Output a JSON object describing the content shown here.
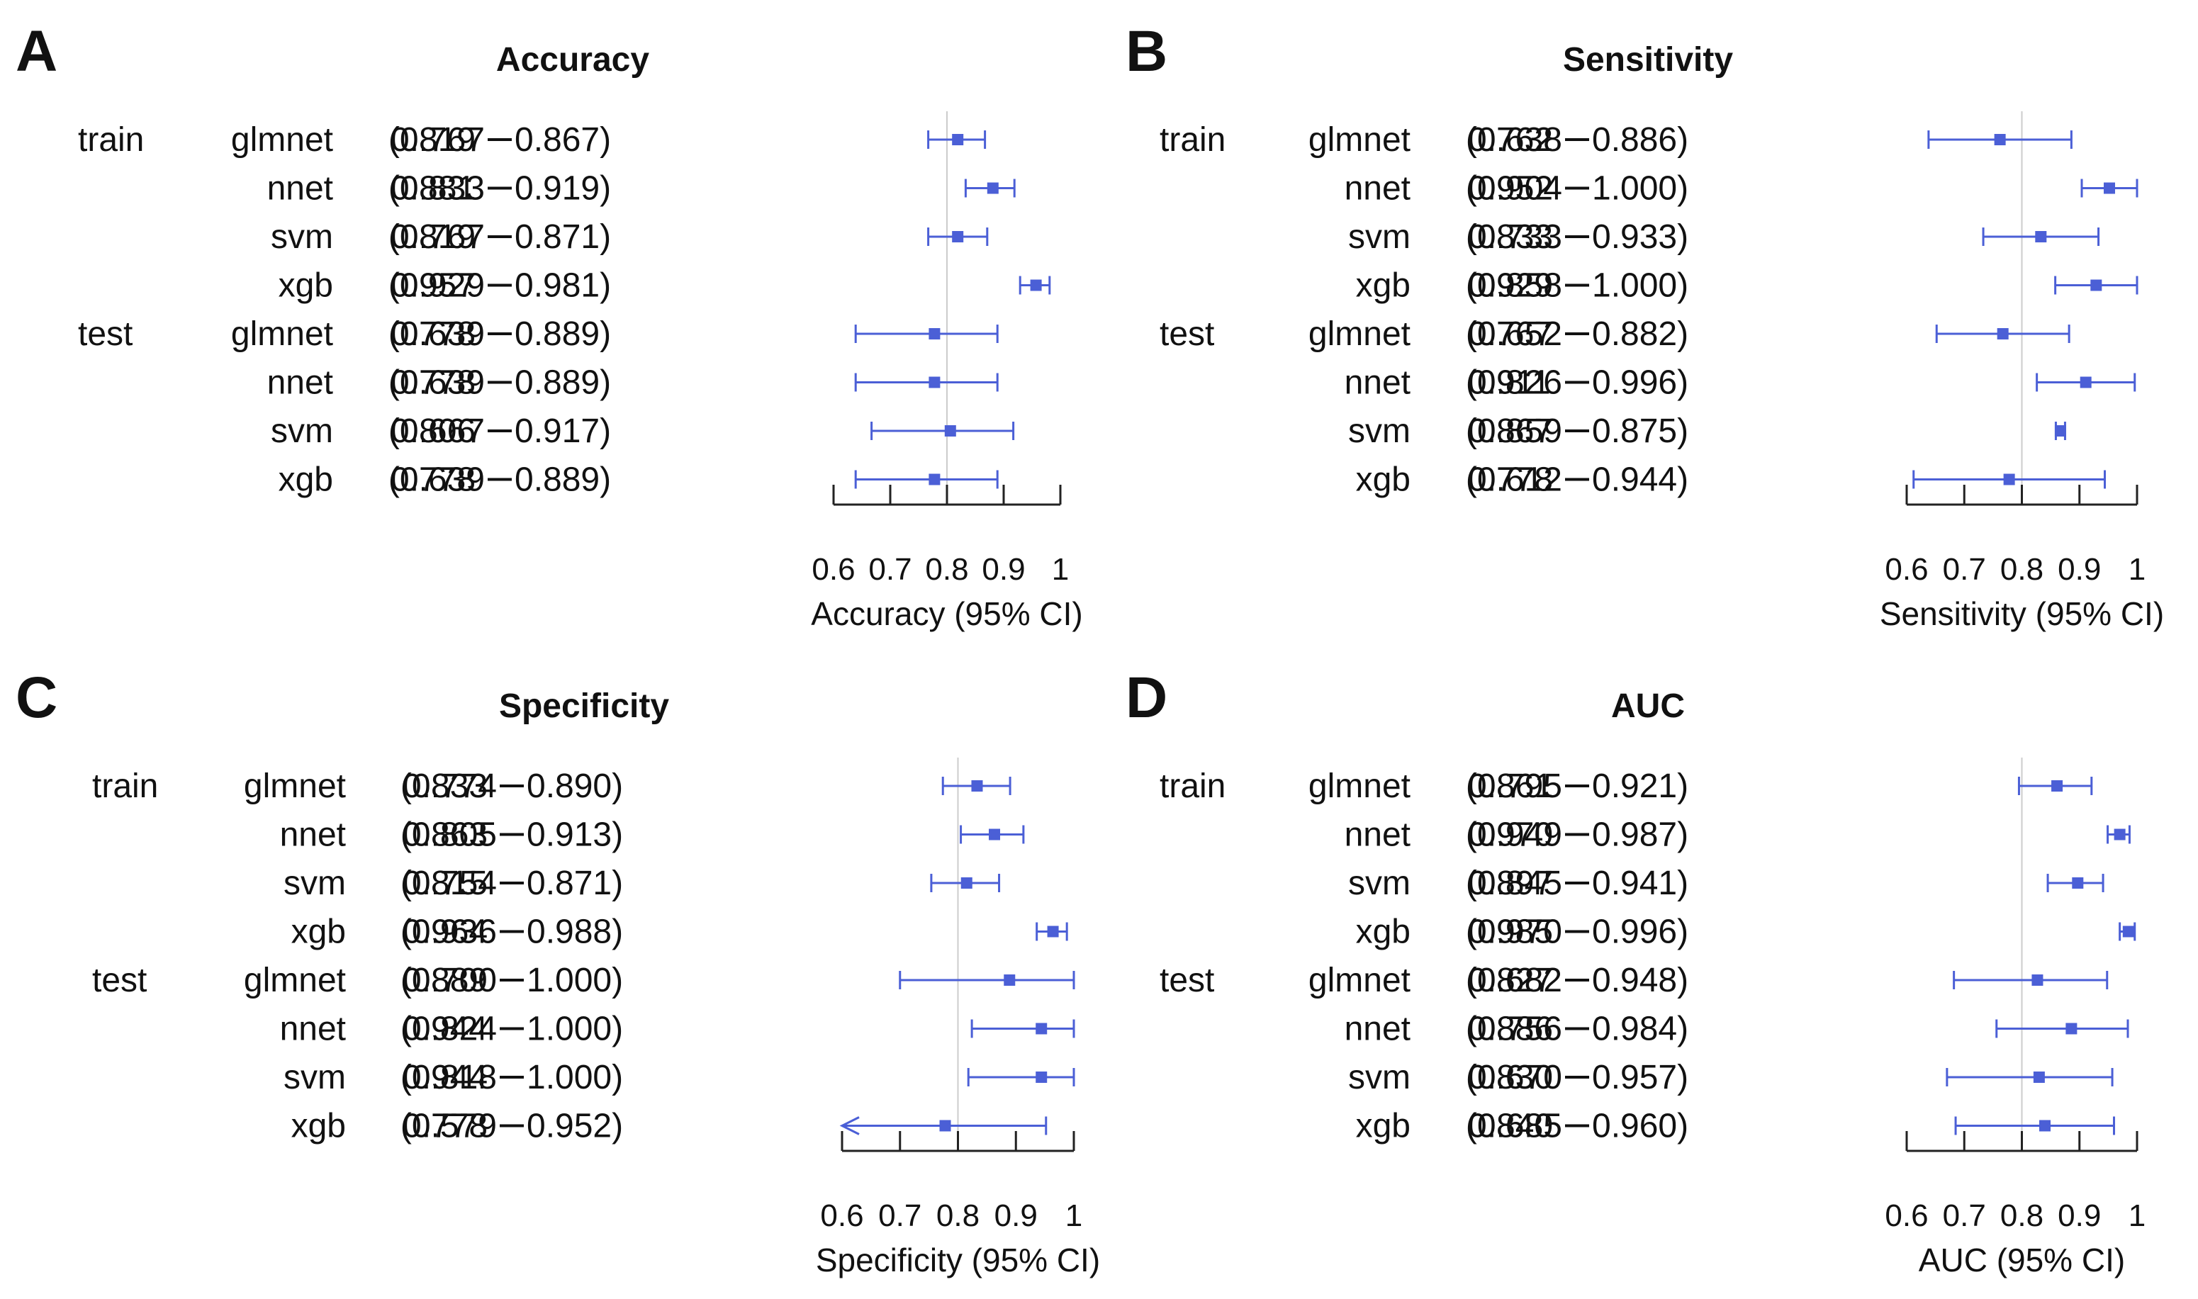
{
  "colors": {
    "marker": "#4B5FD6",
    "refline": "#CCCCCC",
    "axis": "#222222",
    "text": "#111111"
  },
  "chart_data": [
    {
      "type": "forest",
      "letter": "A",
      "title": "Accuracy",
      "xlabel": "Accuracy (95% CI)",
      "xlim": [
        0.6,
        1.0
      ],
      "ticks": [
        0.6,
        0.7,
        0.8,
        0.9,
        1.0
      ],
      "tick_labels": [
        "0.6",
        "0.7",
        "0.8",
        "0.9",
        "1"
      ],
      "ref_line": 0.8,
      "rows": [
        {
          "group": "train",
          "model": "glmnet",
          "est": 0.819,
          "lo": 0.767,
          "hi": 0.867,
          "est_text": "0.819",
          "lo_text": "(0.767",
          "hi_text": "0.867)"
        },
        {
          "group": "",
          "model": "nnet",
          "est": 0.881,
          "lo": 0.833,
          "hi": 0.919,
          "est_text": "0.881",
          "lo_text": "(0.833",
          "hi_text": "0.919)"
        },
        {
          "group": "",
          "model": "svm",
          "est": 0.819,
          "lo": 0.767,
          "hi": 0.871,
          "est_text": "0.819",
          "lo_text": "(0.767",
          "hi_text": "0.871)"
        },
        {
          "group": "",
          "model": "xgb",
          "est": 0.957,
          "lo": 0.929,
          "hi": 0.981,
          "est_text": "0.957",
          "lo_text": "(0.929",
          "hi_text": "0.981)"
        },
        {
          "group": "test",
          "model": "glmnet",
          "est": 0.778,
          "lo": 0.639,
          "hi": 0.889,
          "est_text": "0.778",
          "lo_text": "(0.639",
          "hi_text": "0.889)"
        },
        {
          "group": "",
          "model": "nnet",
          "est": 0.778,
          "lo": 0.639,
          "hi": 0.889,
          "est_text": "0.778",
          "lo_text": "(0.639",
          "hi_text": "0.889)"
        },
        {
          "group": "",
          "model": "svm",
          "est": 0.806,
          "lo": 0.667,
          "hi": 0.917,
          "est_text": "0.806",
          "lo_text": "(0.667",
          "hi_text": "0.917)"
        },
        {
          "group": "",
          "model": "xgb",
          "est": 0.778,
          "lo": 0.639,
          "hi": 0.889,
          "est_text": "0.778",
          "lo_text": "(0.639",
          "hi_text": "0.889)"
        }
      ]
    },
    {
      "type": "forest",
      "letter": "B",
      "title": "Sensitivity",
      "xlabel": "Sensitivity (95% CI)",
      "xlim": [
        0.6,
        1.0
      ],
      "ticks": [
        0.6,
        0.7,
        0.8,
        0.9,
        1.0
      ],
      "tick_labels": [
        "0.6",
        "0.7",
        "0.8",
        "0.9",
        "1"
      ],
      "ref_line": 0.8,
      "rows": [
        {
          "group": "train",
          "model": "glmnet",
          "est": 0.762,
          "lo": 0.638,
          "hi": 0.886,
          "est_text": "0.762",
          "lo_text": "(0.638",
          "hi_text": "0.886)"
        },
        {
          "group": "",
          "model": "nnet",
          "est": 0.952,
          "lo": 0.904,
          "hi": 1.0,
          "est_text": "0.952",
          "lo_text": "(0.904",
          "hi_text": "1.000)"
        },
        {
          "group": "",
          "model": "svm",
          "est": 0.833,
          "lo": 0.733,
          "hi": 0.933,
          "est_text": "0.833",
          "lo_text": "(0.733",
          "hi_text": "0.933)"
        },
        {
          "group": "",
          "model": "xgb",
          "est": 0.929,
          "lo": 0.858,
          "hi": 1.0,
          "est_text": "0.929",
          "lo_text": "(0.858",
          "hi_text": "1.000)"
        },
        {
          "group": "test",
          "model": "glmnet",
          "est": 0.767,
          "lo": 0.652,
          "hi": 0.882,
          "est_text": "0.767",
          "lo_text": "(0.652",
          "hi_text": "0.882)"
        },
        {
          "group": "",
          "model": "nnet",
          "est": 0.911,
          "lo": 0.826,
          "hi": 0.996,
          "est_text": "0.911",
          "lo_text": "(0.826",
          "hi_text": "0.996)"
        },
        {
          "group": "",
          "model": "svm",
          "est": 0.867,
          "lo": 0.859,
          "hi": 0.875,
          "est_text": "0.867",
          "lo_text": "(0.859",
          "hi_text": "0.875)"
        },
        {
          "group": "",
          "model": "xgb",
          "est": 0.778,
          "lo": 0.612,
          "hi": 0.944,
          "est_text": "0.778",
          "lo_text": "(0.612",
          "hi_text": "0.944)"
        }
      ]
    },
    {
      "type": "forest",
      "letter": "C",
      "title": "Specificity",
      "xlabel": "Specificity (95% CI)",
      "xlim": [
        0.6,
        1.0
      ],
      "ticks": [
        0.6,
        0.7,
        0.8,
        0.9,
        1.0
      ],
      "tick_labels": [
        "0.6",
        "0.7",
        "0.8",
        "0.9",
        "1"
      ],
      "ref_line": 0.8,
      "rows": [
        {
          "group": "train",
          "model": "glmnet",
          "est": 0.833,
          "lo": 0.774,
          "hi": 0.89,
          "est_text": "0.833",
          "lo_text": "(0.774",
          "hi_text": "0.890)"
        },
        {
          "group": "",
          "model": "nnet",
          "est": 0.863,
          "lo": 0.805,
          "hi": 0.913,
          "est_text": "0.863",
          "lo_text": "(0.805",
          "hi_text": "0.913)"
        },
        {
          "group": "",
          "model": "svm",
          "est": 0.815,
          "lo": 0.754,
          "hi": 0.871,
          "est_text": "0.815",
          "lo_text": "(0.754",
          "hi_text": "0.871)"
        },
        {
          "group": "",
          "model": "xgb",
          "est": 0.964,
          "lo": 0.936,
          "hi": 0.988,
          "est_text": "0.964",
          "lo_text": "(0.936",
          "hi_text": "0.988)"
        },
        {
          "group": "test",
          "model": "glmnet",
          "est": 0.889,
          "lo": 0.7,
          "hi": 1.0,
          "est_text": "0.889",
          "lo_text": "(0.700",
          "hi_text": "1.000)"
        },
        {
          "group": "",
          "model": "nnet",
          "est": 0.944,
          "lo": 0.824,
          "hi": 1.0,
          "est_text": "0.944",
          "lo_text": "(0.824",
          "hi_text": "1.000)"
        },
        {
          "group": "",
          "model": "svm",
          "est": 0.944,
          "lo": 0.818,
          "hi": 1.0,
          "est_text": "0.944",
          "lo_text": "(0.818",
          "hi_text": "1.000)"
        },
        {
          "group": "",
          "model": "xgb",
          "est": 0.778,
          "lo": 0.579,
          "hi": 0.952,
          "est_text": "0.778",
          "lo_text": "(0.579",
          "hi_text": "0.952)"
        }
      ]
    },
    {
      "type": "forest",
      "letter": "D",
      "title": "AUC",
      "xlabel": "AUC (95% CI)",
      "xlim": [
        0.6,
        1.0
      ],
      "ticks": [
        0.6,
        0.7,
        0.8,
        0.9,
        1.0
      ],
      "tick_labels": [
        "0.6",
        "0.7",
        "0.8",
        "0.9",
        "1"
      ],
      "ref_line": 0.8,
      "rows": [
        {
          "group": "train",
          "model": "glmnet",
          "est": 0.861,
          "lo": 0.795,
          "hi": 0.921,
          "est_text": "0.861",
          "lo_text": "(0.795",
          "hi_text": "0.921)"
        },
        {
          "group": "",
          "model": "nnet",
          "est": 0.97,
          "lo": 0.949,
          "hi": 0.987,
          "est_text": "0.970",
          "lo_text": "(0.949",
          "hi_text": "0.987)"
        },
        {
          "group": "",
          "model": "svm",
          "est": 0.897,
          "lo": 0.845,
          "hi": 0.941,
          "est_text": "0.897",
          "lo_text": "(0.845",
          "hi_text": "0.941)"
        },
        {
          "group": "",
          "model": "xgb",
          "est": 0.985,
          "lo": 0.97,
          "hi": 0.996,
          "est_text": "0.985",
          "lo_text": "(0.970",
          "hi_text": "0.996)"
        },
        {
          "group": "test",
          "model": "glmnet",
          "est": 0.827,
          "lo": 0.682,
          "hi": 0.948,
          "est_text": "0.827",
          "lo_text": "(0.682",
          "hi_text": "0.948)"
        },
        {
          "group": "",
          "model": "nnet",
          "est": 0.886,
          "lo": 0.756,
          "hi": 0.984,
          "est_text": "0.886",
          "lo_text": "(0.756",
          "hi_text": "0.984)"
        },
        {
          "group": "",
          "model": "svm",
          "est": 0.83,
          "lo": 0.67,
          "hi": 0.957,
          "est_text": "0.830",
          "lo_text": "(0.670",
          "hi_text": "0.957)"
        },
        {
          "group": "",
          "model": "xgb",
          "est": 0.84,
          "lo": 0.685,
          "hi": 0.96,
          "est_text": "0.840",
          "lo_text": "(0.685",
          "hi_text": "0.960)"
        }
      ]
    }
  ]
}
